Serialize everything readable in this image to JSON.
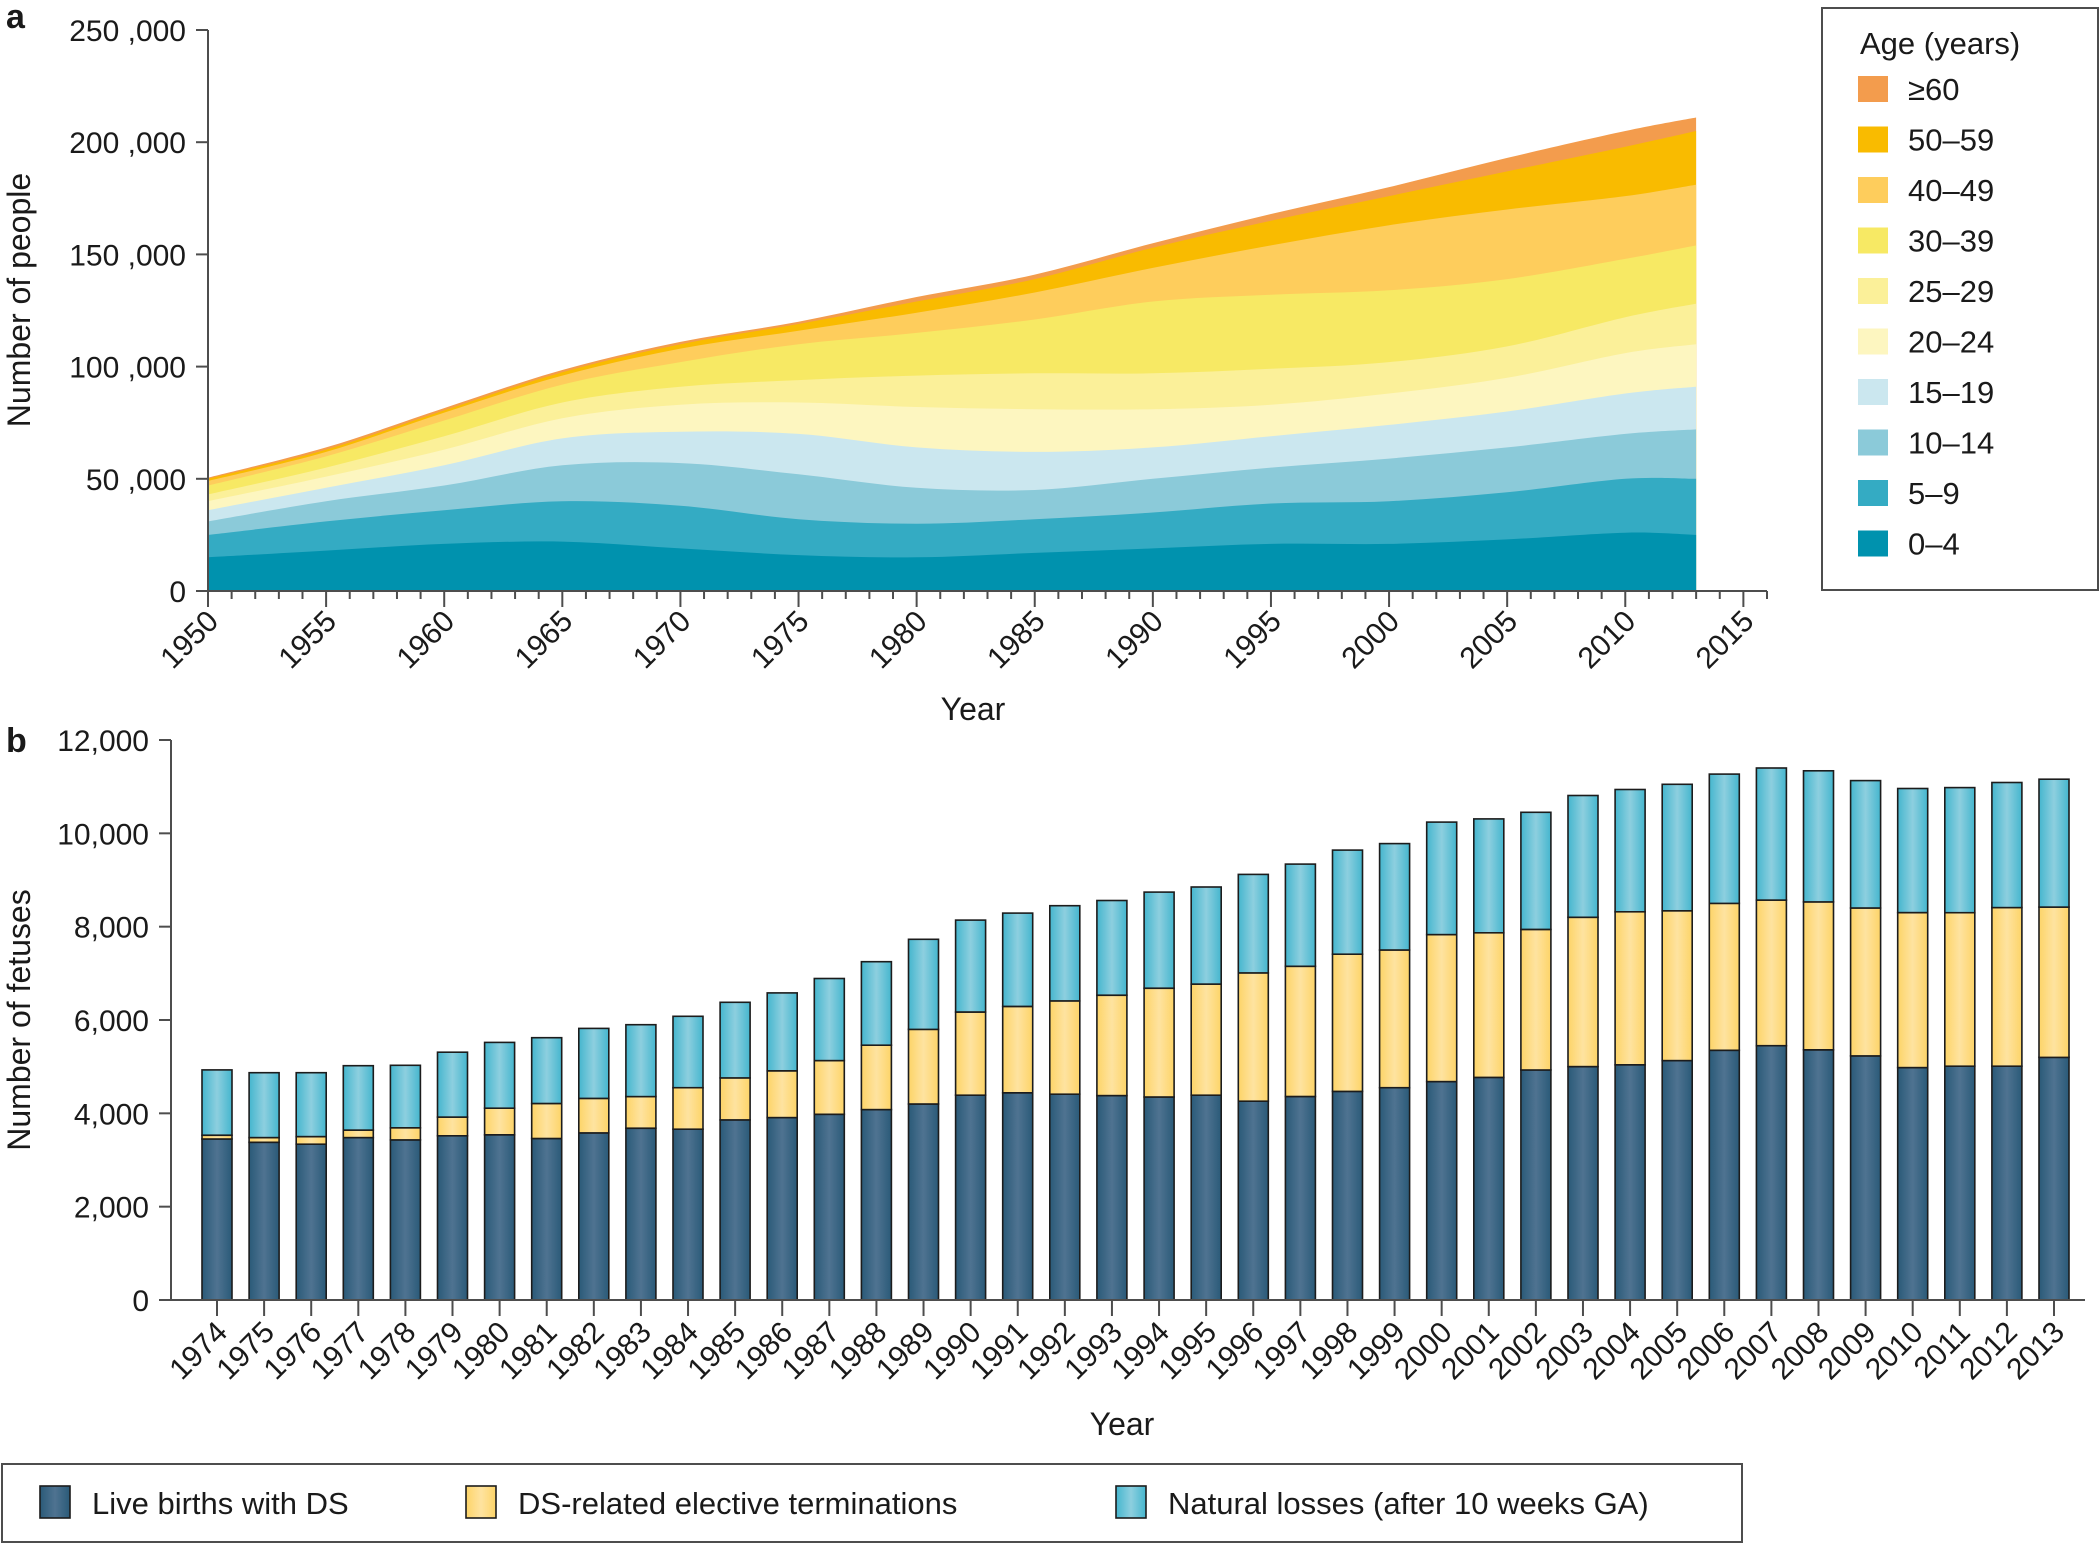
{
  "figure": {
    "panel_a_letter": "a",
    "panel_b_letter": "b"
  },
  "chart_data": [
    {
      "id": "panel-a",
      "type": "area",
      "stacked": true,
      "title": "",
      "xlabel": "Year",
      "ylabel": "Number of people",
      "xlim": [
        1950,
        2016
      ],
      "ylim": [
        0,
        250000
      ],
      "x_ticks": [
        1950,
        1955,
        1960,
        1965,
        1970,
        1975,
        1980,
        1985,
        1990,
        1995,
        2000,
        2005,
        2010,
        2015
      ],
      "x_tick_labels": [
        "1950",
        "1955",
        "1960",
        "1965",
        "1970",
        "1975",
        "1980",
        "1985",
        "1990",
        "1995",
        "2000",
        "2005",
        "2010",
        "2015"
      ],
      "y_ticks": [
        0,
        50000,
        100000,
        150000,
        200000,
        250000
      ],
      "y_tick_labels": [
        "0",
        "50 ,000",
        "100 ,000",
        "150 ,000",
        "200 ,000",
        "250 ,000"
      ],
      "legend_title": "Age (years)",
      "legend_position": "right",
      "x": [
        1950,
        1955,
        1960,
        1965,
        1970,
        1975,
        1980,
        1985,
        1990,
        1995,
        2000,
        2005,
        2010,
        2013
      ],
      "series": [
        {
          "name": "0–4",
          "color": "#0092ae",
          "values": [
            15000,
            18000,
            21000,
            22000,
            19000,
            16000,
            15000,
            17000,
            19000,
            21000,
            21000,
            23000,
            26000,
            25000
          ]
        },
        {
          "name": "5–9",
          "color": "#34abc3",
          "values": [
            10000,
            13000,
            15000,
            18000,
            19000,
            16000,
            15000,
            15000,
            16000,
            18000,
            19000,
            21000,
            24000,
            25000
          ]
        },
        {
          "name": "10–14",
          "color": "#8bcad9",
          "values": [
            6000,
            9000,
            11000,
            16000,
            19000,
            20000,
            16000,
            13000,
            15000,
            16000,
            19000,
            20000,
            20000,
            22000
          ]
        },
        {
          "name": "15–19",
          "color": "#cbe7ef",
          "values": [
            5000,
            6000,
            9000,
            12000,
            14000,
            18000,
            18000,
            17000,
            14000,
            14000,
            15000,
            16000,
            18000,
            19000
          ]
        },
        {
          "name": "20–24",
          "color": "#fdf6c0",
          "values": [
            4000,
            5000,
            7000,
            9000,
            12000,
            14000,
            18000,
            19000,
            17000,
            14000,
            14000,
            15000,
            18000,
            19000
          ]
        },
        {
          "name": "25–29",
          "color": "#fbf099",
          "values": [
            3000,
            4000,
            6000,
            7000,
            8000,
            10000,
            14000,
            16000,
            16000,
            16000,
            14000,
            14000,
            16000,
            18000
          ]
        },
        {
          "name": "30–39",
          "color": "#f7e964",
          "values": [
            4000,
            5000,
            7000,
            8000,
            11000,
            16000,
            19000,
            24000,
            32000,
            33000,
            32000,
            30000,
            26000,
            26000
          ]
        },
        {
          "name": "40–49",
          "color": "#fecd5c",
          "values": [
            2000,
            2000,
            3500,
            4000,
            6000,
            6000,
            9000,
            12000,
            15000,
            22000,
            29000,
            31000,
            28000,
            27000
          ]
        },
        {
          "name": "50–59",
          "color": "#f9bb00",
          "values": [
            1000,
            1000,
            1000,
            1500,
            2000,
            3000,
            5000,
            6000,
            9000,
            11000,
            13000,
            17000,
            22000,
            24000
          ]
        },
        {
          "name": "≥60",
          "color": "#f39c4d",
          "values": [
            500,
            1000,
            1000,
            1000,
            1000,
            1000,
            2000,
            2000,
            2000,
            3000,
            4000,
            6000,
            7000,
            6000
          ]
        }
      ]
    },
    {
      "id": "panel-b",
      "type": "bar",
      "stacked": true,
      "title": "",
      "xlabel": "Year",
      "ylabel": "Number of fetuses",
      "ylim": [
        0,
        12000
      ],
      "y_ticks": [
        0,
        2000,
        4000,
        6000,
        8000,
        10000,
        12000
      ],
      "y_tick_labels": [
        "0",
        "2,000",
        "4,000",
        "6,000",
        "8,000",
        "10,000",
        "12,000"
      ],
      "legend_position": "bottom",
      "categories": [
        "1974",
        "1975",
        "1976",
        "1977",
        "1978",
        "1979",
        "1980",
        "1981",
        "1982",
        "1983",
        "1984",
        "1985",
        "1986",
        "1987",
        "1988",
        "1989",
        "1990",
        "1991",
        "1992",
        "1993",
        "1994",
        "1995",
        "1996",
        "1997",
        "1998",
        "1999",
        "2000",
        "2001",
        "2002",
        "2003",
        "2004",
        "2005",
        "2006",
        "2007",
        "2008",
        "2009",
        "2010",
        "2011",
        "2012",
        "2013"
      ],
      "series": [
        {
          "name": "Live births with DS",
          "color": "#2a5a78",
          "highlight": "#4f7391",
          "values": [
            3450,
            3380,
            3340,
            3480,
            3430,
            3520,
            3540,
            3460,
            3580,
            3680,
            3660,
            3860,
            3910,
            3980,
            4080,
            4200,
            4390,
            4440,
            4410,
            4380,
            4350,
            4390,
            4260,
            4360,
            4470,
            4550,
            4680,
            4770,
            4930,
            5000,
            5040,
            5130,
            5350,
            5450,
            5360,
            5230,
            4980,
            5010,
            5010,
            5200
          ]
        },
        {
          "name": "DS-related elective terminations",
          "color": "#fdd468",
          "highlight": "#fee3a0",
          "values": [
            80,
            100,
            160,
            160,
            260,
            400,
            570,
            750,
            740,
            680,
            890,
            900,
            1000,
            1150,
            1380,
            1600,
            1780,
            1850,
            2000,
            2150,
            2330,
            2380,
            2750,
            2790,
            2940,
            2950,
            3150,
            3100,
            3010,
            3200,
            3280,
            3210,
            3150,
            3120,
            3170,
            3170,
            3320,
            3290,
            3400,
            3220
          ]
        },
        {
          "name": "Natural losses (after 10 weeks GA)",
          "color": "#45b6ce",
          "highlight": "#8dcfdf",
          "values": [
            1400,
            1390,
            1370,
            1380,
            1340,
            1390,
            1410,
            1410,
            1500,
            1540,
            1530,
            1620,
            1670,
            1760,
            1790,
            1930,
            1970,
            2000,
            2040,
            2030,
            2060,
            2080,
            2110,
            2190,
            2230,
            2280,
            2410,
            2440,
            2510,
            2610,
            2620,
            2710,
            2770,
            2830,
            2810,
            2730,
            2660,
            2680,
            2680,
            2740
          ]
        }
      ]
    }
  ]
}
